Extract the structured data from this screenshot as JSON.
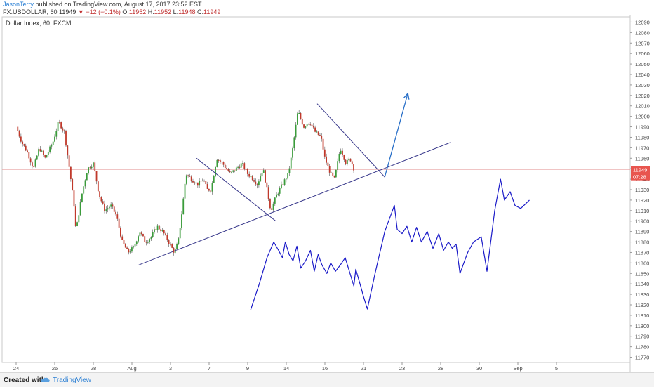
{
  "header": {
    "author": "JasonTerry",
    "published": " published on TradingView.com, August 17, 2017 23:52 EST",
    "symbol_line": "FX:USDOLLAR, 60  11949",
    "change": "▼ −12 (−0.1%)",
    "o_label": " O:",
    "o_val": "11952",
    "h_label": " H:",
    "h_val": "11952",
    "l_label": " L:",
    "l_val": "11948",
    "c_label": " C:",
    "c_val": "11949"
  },
  "chart_title": "Dollar Index, 60, FXCM",
  "footer": {
    "created_with": "Created with",
    "brand": "TradingView"
  },
  "colors": {
    "up": "#3b9c3b",
    "down": "#c0392b",
    "wick": "#555555",
    "trendline": "#3a3a8c",
    "drawing": "#1a1ac8",
    "arrow": "#2a70c8",
    "price_label": "#e8554e",
    "gridline_price": "#e8a0a0"
  },
  "chart_data": {
    "type": "candlestick",
    "symbol": "FX:USDOLLAR",
    "interval": "60",
    "ylim": [
      11765,
      12095
    ],
    "y_ticks": [
      12090,
      12080,
      12070,
      12060,
      12050,
      12040,
      12030,
      12020,
      12010,
      12000,
      11990,
      11980,
      11970,
      11960,
      11950,
      11940,
      11930,
      11920,
      11910,
      11900,
      11890,
      11880,
      11870,
      11860,
      11850,
      11840,
      11830,
      11820,
      11810,
      11800,
      11790,
      11780,
      11770
    ],
    "x_labels": [
      {
        "label": "24",
        "day": 0
      },
      {
        "label": "26",
        "day": 2
      },
      {
        "label": "28",
        "day": 4
      },
      {
        "label": "Aug",
        "day": 6
      },
      {
        "label": "3",
        "day": 8
      },
      {
        "label": "7",
        "day": 10
      },
      {
        "label": "9",
        "day": 12
      },
      {
        "label": "14",
        "day": 14
      },
      {
        "label": "16",
        "day": 16
      },
      {
        "label": "21",
        "day": 18
      },
      {
        "label": "23",
        "day": 20
      },
      {
        "label": "28",
        "day": 22
      },
      {
        "label": "30",
        "day": 24
      },
      {
        "label": "Sep",
        "day": 26
      },
      {
        "label": "5",
        "day": 28
      }
    ],
    "last_price": "11949",
    "countdown": "07:28",
    "last_value": 11949,
    "price_path": [
      [
        0.0,
        11990
      ],
      [
        0.3,
        11975
      ],
      [
        0.6,
        11965
      ],
      [
        0.9,
        11950
      ],
      [
        1.2,
        11970
      ],
      [
        1.5,
        11960
      ],
      [
        1.9,
        11975
      ],
      [
        2.2,
        11995
      ],
      [
        2.5,
        11985
      ],
      [
        2.8,
        11945
      ],
      [
        3.0,
        11915
      ],
      [
        3.1,
        11890
      ],
      [
        3.4,
        11925
      ],
      [
        3.7,
        11950
      ],
      [
        4.0,
        11955
      ],
      [
        4.3,
        11925
      ],
      [
        4.6,
        11910
      ],
      [
        4.9,
        11915
      ],
      [
        5.2,
        11905
      ],
      [
        5.5,
        11880
      ],
      [
        5.8,
        11870
      ],
      [
        6.1,
        11875
      ],
      [
        6.4,
        11890
      ],
      [
        6.7,
        11880
      ],
      [
        7.0,
        11885
      ],
      [
        7.3,
        11895
      ],
      [
        7.6,
        11890
      ],
      [
        7.9,
        11880
      ],
      [
        8.2,
        11870
      ],
      [
        8.4,
        11880
      ],
      [
        8.6,
        11910
      ],
      [
        8.8,
        11945
      ],
      [
        9.1,
        11940
      ],
      [
        9.4,
        11935
      ],
      [
        9.7,
        11940
      ],
      [
        9.9,
        11930
      ],
      [
        10.1,
        11930
      ],
      [
        10.4,
        11960
      ],
      [
        10.7,
        11955
      ],
      [
        10.9,
        11950
      ],
      [
        11.1,
        11945
      ],
      [
        11.4,
        11950
      ],
      [
        11.7,
        11955
      ],
      [
        12.0,
        11945
      ],
      [
        12.3,
        11940
      ],
      [
        12.5,
        11935
      ],
      [
        12.8,
        11950
      ],
      [
        13.0,
        11930
      ],
      [
        13.2,
        11910
      ],
      [
        13.5,
        11925
      ],
      [
        13.8,
        11935
      ],
      [
        14.1,
        11945
      ],
      [
        14.3,
        11965
      ],
      [
        14.6,
        12005
      ],
      [
        14.9,
        11990
      ],
      [
        15.2,
        11995
      ],
      [
        15.5,
        11985
      ],
      [
        15.8,
        11980
      ],
      [
        16.0,
        11960
      ],
      [
        16.3,
        11945
      ],
      [
        16.5,
        11940
      ],
      [
        16.8,
        11970
      ],
      [
        17.1,
        11955
      ],
      [
        17.3,
        11960
      ],
      [
        17.5,
        11950
      ]
    ],
    "trendlines": [
      {
        "name": "support",
        "points": [
          [
            6.35,
            11858
          ],
          [
            22.5,
            11975
          ]
        ]
      },
      {
        "name": "resistance-1",
        "points": [
          [
            9.35,
            11960
          ],
          [
            13.45,
            11900
          ]
        ]
      },
      {
        "name": "resistance-2",
        "points": [
          [
            15.6,
            12012
          ],
          [
            19.1,
            11942
          ]
        ]
      }
    ],
    "arrow": {
      "from": [
        19.1,
        11942
      ],
      "to": [
        20.3,
        12022
      ]
    },
    "projection": [
      [
        12.15,
        11815
      ],
      [
        12.6,
        11840
      ],
      [
        13.0,
        11865
      ],
      [
        13.35,
        11880
      ],
      [
        13.6,
        11872
      ],
      [
        13.8,
        11865
      ],
      [
        13.95,
        11880
      ],
      [
        14.15,
        11868
      ],
      [
        14.35,
        11862
      ],
      [
        14.55,
        11876
      ],
      [
        14.75,
        11855
      ],
      [
        15.0,
        11862
      ],
      [
        15.25,
        11872
      ],
      [
        15.45,
        11852
      ],
      [
        15.65,
        11868
      ],
      [
        15.85,
        11858
      ],
      [
        16.1,
        11850
      ],
      [
        16.3,
        11860
      ],
      [
        16.55,
        11852
      ],
      [
        16.8,
        11858
      ],
      [
        17.05,
        11865
      ],
      [
        17.3,
        11850
      ],
      [
        17.5,
        11838
      ],
      [
        17.6,
        11854
      ],
      [
        17.85,
        11838
      ],
      [
        18.0,
        11828
      ],
      [
        18.2,
        11816
      ],
      [
        18.6,
        11850
      ],
      [
        19.1,
        11890
      ],
      [
        19.6,
        11915
      ],
      [
        19.75,
        11892
      ],
      [
        20.0,
        11888
      ],
      [
        20.25,
        11895
      ],
      [
        20.5,
        11880
      ],
      [
        20.75,
        11894
      ],
      [
        21.0,
        11880
      ],
      [
        21.3,
        11890
      ],
      [
        21.6,
        11874
      ],
      [
        21.9,
        11888
      ],
      [
        22.15,
        11872
      ],
      [
        22.4,
        11880
      ],
      [
        22.6,
        11874
      ],
      [
        22.8,
        11878
      ],
      [
        23.0,
        11850
      ],
      [
        23.4,
        11870
      ],
      [
        23.7,
        11880
      ],
      [
        24.1,
        11885
      ],
      [
        24.4,
        11852
      ],
      [
        24.8,
        11910
      ],
      [
        25.1,
        11940
      ],
      [
        25.3,
        11920
      ],
      [
        25.6,
        11928
      ],
      [
        25.85,
        11915
      ],
      [
        26.15,
        11912
      ],
      [
        26.6,
        11920
      ]
    ]
  }
}
